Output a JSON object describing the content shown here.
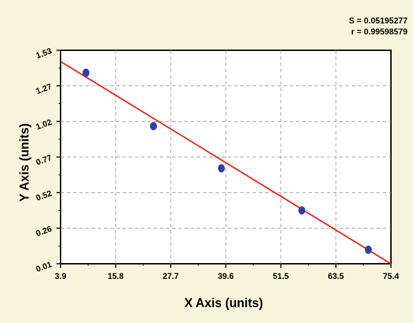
{
  "stats": {
    "s_label": "S = 0.05195277",
    "r_label": "r = 0.99598579"
  },
  "chart_data": {
    "type": "scatter",
    "xlabel": "X Axis (units)",
    "ylabel": "Y Axis (units)",
    "xlim": [
      3.9,
      75.4
    ],
    "ylim": [
      0.01,
      1.53
    ],
    "x_ticks": [
      "3.9",
      "15.8",
      "27.7",
      "39.6",
      "51.5",
      "63.5",
      "75.4"
    ],
    "y_ticks": [
      "0.01",
      "0.26",
      "0.52",
      "0.77",
      "1.02",
      "1.27",
      "1.53"
    ],
    "grid": true,
    "points": [
      {
        "x": 9.4,
        "y": 1.37
      },
      {
        "x": 24.0,
        "y": 0.99
      },
      {
        "x": 38.7,
        "y": 0.69
      },
      {
        "x": 56.1,
        "y": 0.39
      },
      {
        "x": 70.5,
        "y": 0.11
      }
    ],
    "fit_line": {
      "x": [
        3.9,
        75.4
      ],
      "y": [
        1.45,
        0.01
      ]
    },
    "colors": {
      "background": "#f8f5dc",
      "plot_background": "#ffffff",
      "points": "#2f3fa6",
      "fit_line": "#e0231a",
      "grid": "#9a9a9a"
    }
  }
}
